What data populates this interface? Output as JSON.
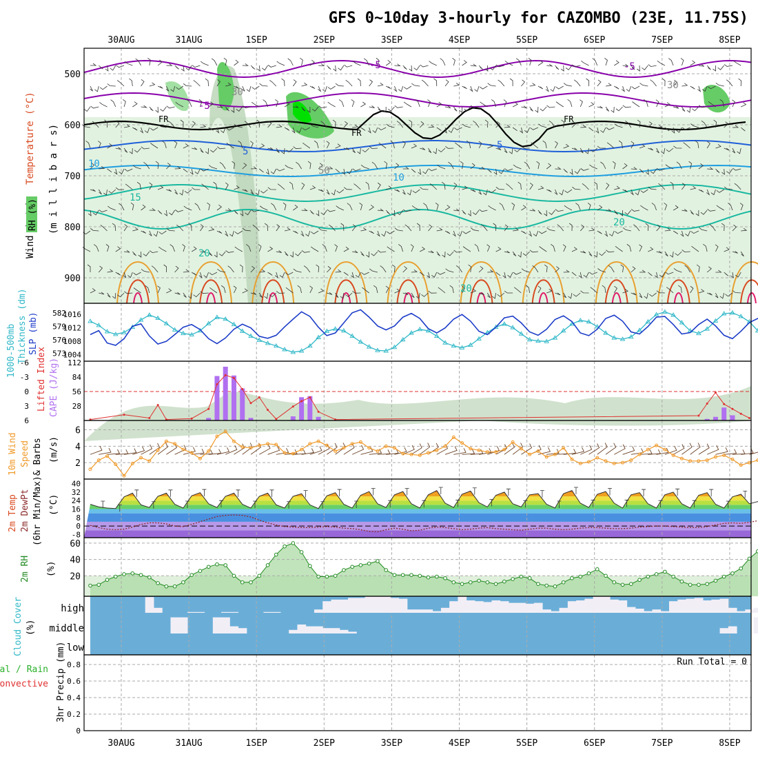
{
  "title": "GFS 0~10day 3-hourly for CAZOMBO (23E, 11.75S)",
  "colors": {
    "frame": "#000000",
    "grid": "#aaaaaa",
    "rh_light": "#e2f2e0",
    "rh_mid": "#bcd6b8",
    "rh_green": "#66cc66",
    "rh_bright": "#00e000",
    "temp_neg": "#8800aa",
    "temp_blue": "#1e5fd8",
    "temp_lblue": "#1e9ee0",
    "temp_teal": "#18b8a0",
    "temp_orange": "#e8a030",
    "temp_red": "#d84a20",
    "temp_mag": "#e01a6a",
    "slp": "#1c3cc8",
    "thickness": "#30b8c8",
    "lifted": "#e03030",
    "cape": "#b070f0",
    "wind10": "#f09a2a",
    "barb": "#6b4226",
    "rh2m": "#228b22",
    "cloud_bg": "#6aaed8",
    "cloud_clear": "#f2eef6",
    "precip_total": "#2ab02a",
    "precip_conv": "#e03030"
  },
  "date_labels": [
    "30AUG",
    "31AUG",
    "1SEP",
    "2SEP",
    "3SEP",
    "4SEP",
    "5SEP",
    "6SEP",
    "7SEP",
    "8SEP"
  ],
  "panels": {
    "upper": {
      "ylabel_wind": "Wind (m/s)",
      "ylabel_temp": "Temperature (°C)",
      "ylabel_rh": "RH (%)",
      "ylabel_p": "(m i l l i b a r s)",
      "p_ticks": [
        500,
        600,
        700,
        800,
        900
      ],
      "p_range": [
        450,
        950
      ],
      "fr_label": "FR",
      "contour_labels": [
        "-5",
        "-5",
        "-5",
        "5",
        "5",
        "10",
        "10",
        "15",
        "20",
        "20",
        "20",
        "30",
        "30",
        "50"
      ]
    },
    "thickness": {
      "ylabel1": "1000-500mb",
      "ylabel2": "Thickness (dm)",
      "ylabel3": "SLP (mb)",
      "left_ticks": [
        573,
        576,
        579,
        582
      ],
      "right_ticks": [
        1004,
        1008,
        1012,
        1016
      ]
    },
    "cape": {
      "ylabel1": "Lifted Index",
      "ylabel2": "CAPE (J/kg)",
      "left_ticks": [
        "-6",
        "-3",
        "0",
        "3",
        "6"
      ],
      "right_ticks": [
        28,
        56,
        84,
        112
      ]
    },
    "wind": {
      "ylabel1": "10m Wind",
      "ylabel2": "Speed",
      "ylabel3": "& Barbs",
      "ylabel4": "(m/s)",
      "ticks": [
        2,
        4,
        6
      ]
    },
    "temp2m": {
      "ylabel1": "2m Temp",
      "ylabel2": "2m DewPt",
      "ylabel3": "(6hr Min/Max)",
      "ylabel4": "(°C)",
      "ticks": [
        -8,
        0,
        8,
        16,
        24,
        32,
        40
      ]
    },
    "rh2m": {
      "ylabel1": "2m RH",
      "ylabel2": "(%)",
      "ticks": [
        20,
        40,
        60
      ]
    },
    "cloud": {
      "ylabel1": "Cloud Cover",
      "ylabel2": "(%)",
      "levels": [
        "high",
        "middle",
        "low"
      ]
    },
    "precip": {
      "ylabel1": "3hr Precip (mm)",
      "ylabel_total": "Total / Rain",
      "ylabel_conv": "Convective",
      "run_total": "Run Total = 0",
      "ticks": [
        0,
        0.2,
        0.4,
        0.6,
        0.8
      ]
    }
  },
  "chart_data": [
    {
      "type": "line",
      "name": "thickness_slp",
      "note_x": "3-hourly steps, 0..81",
      "thickness_dm": [
        580.1,
        579.2,
        577.8,
        577.2,
        577.6,
        578.8,
        580.4,
        581.5,
        580.8,
        579.6,
        578.2,
        577.4,
        577.1,
        578.0,
        579.6,
        581.0,
        580.6,
        579.4,
        577.9,
        576.8,
        575.9,
        575.2,
        574.6,
        573.8,
        573.2,
        573.5,
        574.6,
        576.5,
        577.9,
        578.4,
        578.0,
        576.8,
        575.5,
        574.4,
        573.6,
        573.5,
        574.3,
        576.0,
        577.5,
        578.3,
        578.0,
        576.8,
        575.3,
        574.6,
        574.2,
        574.8,
        576.2,
        577.6,
        578.8,
        579.5,
        578.7,
        577.3,
        576.0,
        575.7,
        575.6,
        576.4,
        578.0,
        579.5,
        580.3,
        580.0,
        578.9,
        577.5,
        576.4,
        576.1,
        576.6,
        578.1,
        580.0,
        581.6,
        582.2,
        581.5,
        579.8,
        578.0,
        577.4,
        578.4,
        580.2,
        581.8,
        582.0,
        581.2,
        580.0,
        578.0,
        576.7,
        577.8
      ],
      "slp_mb": [
        1010.0,
        1011.2,
        1007.5,
        1006.8,
        1008.8,
        1012.5,
        1013.2,
        1009.6,
        1007.2,
        1008.0,
        1010.0,
        1012.2,
        1013.0,
        1011.5,
        1008.8,
        1007.3,
        1009.0,
        1011.6,
        1013.1,
        1012.0,
        1009.5,
        1008.9,
        1009.8,
        1012.3,
        1014.6,
        1016.8,
        1015.4,
        1012.2,
        1009.7,
        1010.5,
        1013.5,
        1016.5,
        1017.4,
        1015.2,
        1012.6,
        1011.4,
        1012.6,
        1015.2,
        1016.3,
        1014.8,
        1011.8,
        1010.5,
        1012.0,
        1014.6,
        1016.0,
        1014.0,
        1011.0,
        1010.0,
        1012.2,
        1015.0,
        1015.5,
        1013.5,
        1010.8,
        1009.8,
        1011.6,
        1014.5,
        1015.6,
        1013.9,
        1010.5,
        1009.7,
        1011.6,
        1014.8,
        1015.8,
        1014.0,
        1010.8,
        1010.2,
        1012.4,
        1015.2,
        1015.4,
        1013.0,
        1010.2,
        1010.6,
        1013.0,
        1014.6,
        1012.6,
        1009.8,
        1008.8,
        1011.0,
        1013.6,
        1014.8,
        1013.4,
        1016.6
      ]
    },
    {
      "type": "bar",
      "name": "cape",
      "note_x": "3-hourly steps",
      "cape_jkg": [
        0,
        0,
        0,
        0,
        0,
        0,
        0,
        0,
        0,
        0,
        0,
        0,
        0,
        0,
        0,
        0,
        0,
        0,
        0,
        0,
        0,
        0,
        0,
        0,
        0,
        0,
        0,
        0,
        0,
        0,
        0,
        0,
        0,
        0,
        0,
        0,
        0,
        0,
        0,
        0,
        0,
        0,
        0,
        0,
        0,
        0,
        0,
        0,
        0,
        0,
        0,
        0,
        0,
        0,
        0,
        0,
        0,
        0,
        0,
        0,
        0,
        0,
        0,
        0,
        0,
        0,
        0,
        0,
        0,
        0,
        0,
        0,
        0,
        0,
        0,
        0,
        0,
        0,
        0,
        0,
        0,
        0
      ],
      "cape_nonzero": [
        [
          14,
          5
        ],
        [
          15,
          86
        ],
        [
          16,
          104
        ],
        [
          17,
          87
        ],
        [
          18,
          62
        ],
        [
          19,
          5
        ],
        [
          24,
          8
        ],
        [
          25,
          45
        ],
        [
          26,
          47
        ],
        [
          27,
          7
        ],
        [
          73,
          3
        ],
        [
          74,
          7
        ],
        [
          75,
          25
        ],
        [
          76,
          10
        ]
      ],
      "lifted_index": [
        [
          0,
          5.8
        ],
        [
          4,
          4.8
        ],
        [
          7,
          5.5
        ],
        [
          8,
          2.8
        ],
        [
          9,
          5.8
        ],
        [
          12,
          5.6
        ],
        [
          14,
          3.6
        ],
        [
          15,
          -1.5
        ],
        [
          16,
          -3.4
        ],
        [
          17,
          -2.8
        ],
        [
          18,
          -0.5
        ],
        [
          19,
          2.4
        ],
        [
          20,
          1.2
        ],
        [
          21,
          3.8
        ],
        [
          22,
          5.7
        ],
        [
          24,
          3.1
        ],
        [
          25,
          2.0
        ],
        [
          26,
          1.2
        ],
        [
          27,
          4.2
        ],
        [
          29,
          5.8
        ],
        [
          72,
          5.0
        ],
        [
          73,
          2.5
        ],
        [
          74,
          0.2
        ],
        [
          75,
          2.6
        ],
        [
          76,
          3.6
        ],
        [
          77,
          4.6
        ],
        [
          78,
          5.5
        ]
      ]
    },
    {
      "type": "line",
      "name": "wind10m",
      "speed_ms": [
        1.2,
        2.3,
        2.8,
        1.8,
        0.4,
        1.9,
        2.6,
        2.2,
        3.5,
        4.6,
        4.3,
        3.6,
        3.2,
        2.5,
        3.4,
        5.2,
        5.8,
        4.6,
        3.9,
        3.8,
        4.1,
        4.3,
        4.2,
        3.2,
        3.1,
        3.6,
        4.3,
        4.6,
        4.1,
        3.4,
        3.8,
        4.3,
        4.5,
        3.8,
        3.4,
        4.0,
        3.8,
        3.1,
        3.0,
        2.9,
        3.2,
        3.5,
        4.0,
        5.1,
        4.4,
        3.7,
        3.5,
        3.3,
        3.3,
        3.6,
        4.5,
        3.7,
        3.0,
        3.4,
        2.7,
        3.0,
        3.8,
        2.4,
        1.9,
        2.1,
        2.6,
        2.2,
        1.9,
        2.0,
        2.3,
        3.0,
        3.6,
        4.1,
        3.6,
        2.9,
        2.5,
        2.2,
        2.2,
        2.3,
        2.7,
        2.9,
        2.4,
        1.7,
        2.0,
        2.3,
        1.8,
        2.6
      ]
    },
    {
      "type": "line",
      "name": "temp2m",
      "temp_c": [
        20.5,
        18.0,
        17.0,
        16.5,
        27.5,
        31.0,
        20.0,
        17.5,
        28.0,
        31.0,
        20.5,
        17.0,
        28.5,
        31.5,
        21.0,
        17.5,
        28.0,
        31.0,
        20.5,
        17.0,
        28.0,
        31.0,
        20.0,
        17.0,
        28.0,
        30.5,
        20.0,
        16.5,
        28.5,
        31.5,
        20.5,
        17.0,
        29.0,
        32.5,
        21.0,
        17.5,
        29.5,
        32.5,
        21.0,
        17.0,
        29.5,
        33.5,
        21.5,
        17.5,
        30.0,
        33.0,
        22.0,
        18.0,
        29.0,
        32.0,
        21.0,
        18.0,
        29.5,
        30.5,
        20.5,
        17.0,
        30.5,
        33.5,
        21.5,
        17.5,
        30.0,
        32.5,
        21.5,
        17.0,
        29.5,
        31.5,
        21.0,
        17.0,
        29.5,
        32.0,
        21.0,
        17.0,
        29.0,
        31.5,
        20.5,
        17.0,
        27.5,
        30.0,
        21.0,
        23.0,
        19.5,
        22.0
      ],
      "dewpoint_c": [
        0.5,
        -1.5,
        -3.0,
        -3.5,
        -3.0,
        -1.0,
        1.5,
        3.0,
        3.0,
        2.0,
        0.0,
        -0.5,
        1.5,
        4.0,
        6.5,
        9.0,
        10.0,
        10.5,
        10.0,
        8.5,
        5.5,
        3.0,
        1.0,
        -0.5,
        -1.0,
        -1.5,
        -1.5,
        -1.0,
        -0.5,
        -1.0,
        -2.0,
        -2.5,
        -3.5,
        -5.0,
        -5.5,
        -3.5,
        -2.0,
        -3.0,
        -4.5,
        -4.0,
        -2.0,
        -1.0,
        -1.5,
        -2.5,
        -3.5,
        -3.0,
        -2.0,
        -1.5,
        -2.5,
        -3.0,
        -3.5,
        -4.0,
        -3.0,
        -2.0,
        -2.0,
        -3.0,
        -3.5,
        -3.0,
        -2.0,
        -1.5,
        -1.5,
        -2.0,
        -2.5,
        -2.5,
        -2.0,
        -1.0,
        -0.5,
        0.0,
        0.0,
        -0.5,
        -1.0,
        -1.5,
        -1.5,
        -0.5,
        1.0,
        2.5,
        3.0,
        2.5,
        3.5,
        5.0,
        6.0,
        8.0
      ]
    },
    {
      "type": "area",
      "name": "rh2m",
      "rh_pct": [
        8,
        9,
        15,
        19,
        22,
        23,
        21,
        18,
        11,
        7,
        7,
        12,
        21,
        26,
        31,
        34,
        33,
        20,
        12,
        12,
        20,
        33,
        46,
        56,
        60,
        49,
        32,
        19,
        19,
        20,
        27,
        31,
        33,
        35,
        38,
        27,
        21,
        21,
        21,
        20,
        18,
        19,
        17,
        12,
        10,
        12,
        14,
        12,
        10,
        13,
        16,
        19,
        17,
        10,
        8,
        7,
        12,
        17,
        19,
        23,
        28,
        20,
        12,
        9,
        10,
        15,
        19,
        22,
        25,
        19,
        13,
        9,
        9,
        10,
        14,
        19,
        23,
        29,
        41,
        50,
        57,
        31
      ]
    },
    {
      "type": "heatmap",
      "name": "cloud_cover_high_clear_steps",
      "high_clear_fraction": [
        0,
        0.15,
        0.2,
        0.05,
        0,
        0.15,
        0.8,
        0.7,
        0,
        0.6,
        0,
        0,
        0,
        0,
        0,
        0,
        0,
        0,
        0,
        0,
        0,
        0,
        0.5,
        0.3,
        0,
        0,
        0,
        0,
        0,
        0,
        0,
        0,
        0,
        0,
        0,
        0,
        0,
        0,
        0,
        0,
        0,
        0,
        0,
        0,
        0,
        0,
        0,
        0,
        0,
        0,
        0,
        0,
        0,
        0,
        0,
        0,
        0,
        0,
        0,
        0,
        0,
        0,
        0,
        0,
        0,
        0,
        0,
        0,
        0,
        0,
        0,
        0,
        0,
        0,
        0,
        0,
        0,
        0,
        0,
        0,
        0,
        0
      ],
      "high_present_steps": [
        [
          7,
          0.95
        ],
        [
          8,
          0.3
        ],
        [
          12,
          0.05
        ],
        [
          13,
          0.05
        ],
        [
          16,
          0.05
        ],
        [
          17,
          0.05
        ],
        [
          21,
          0.05
        ],
        [
          22,
          0.05
        ],
        [
          27,
          0.2
        ],
        [
          28,
          0.7
        ],
        [
          29,
          0.8
        ],
        [
          30,
          0.8
        ],
        [
          31,
          0.9
        ],
        [
          32,
          0.9
        ],
        [
          33,
          1.0
        ],
        [
          34,
          1.0
        ],
        [
          35,
          1.0
        ],
        [
          36,
          0.9
        ],
        [
          37,
          0.85
        ],
        [
          38,
          0.2
        ],
        [
          39,
          0.2
        ],
        [
          40,
          0.2
        ],
        [
          41,
          0.1
        ],
        [
          42,
          0.3
        ],
        [
          43,
          0.7
        ],
        [
          44,
          1.0
        ],
        [
          45,
          0.75
        ],
        [
          46,
          0.7
        ],
        [
          47,
          0.65
        ],
        [
          48,
          0.75
        ],
        [
          49,
          0.7
        ],
        [
          50,
          0.6
        ],
        [
          51,
          0.6
        ],
        [
          52,
          0.55
        ],
        [
          53,
          0.6
        ],
        [
          54,
          0.2
        ],
        [
          55,
          0.1
        ],
        [
          56,
          0.3
        ],
        [
          57,
          0.7
        ],
        [
          58,
          0.75
        ],
        [
          59,
          0.85
        ],
        [
          60,
          1.0
        ],
        [
          61,
          1.0
        ],
        [
          62,
          0.8
        ],
        [
          63,
          0.75
        ],
        [
          64,
          0.35
        ],
        [
          65,
          0.25
        ],
        [
          66,
          0.1
        ],
        [
          67,
          0.2
        ],
        [
          68,
          0.1
        ],
        [
          69,
          0.7
        ],
        [
          70,
          0.8
        ],
        [
          71,
          0.85
        ],
        [
          72,
          0.9
        ],
        [
          73,
          0.75
        ],
        [
          74,
          0.8
        ],
        [
          75,
          0.85
        ],
        [
          76,
          0.3
        ],
        [
          77,
          0.1
        ],
        [
          78,
          0.2
        ],
        [
          79,
          0.3
        ]
      ],
      "middle_present_steps": [
        [
          10,
          0.9
        ],
        [
          11,
          0.9
        ],
        [
          15,
          0.9
        ],
        [
          16,
          0.9
        ],
        [
          17,
          0.4
        ],
        [
          18,
          0.3
        ],
        [
          24,
          0.2
        ],
        [
          25,
          0.5
        ],
        [
          26,
          0.4
        ],
        [
          27,
          0.4
        ],
        [
          28,
          0.3
        ],
        [
          29,
          0.3
        ],
        [
          30,
          0.2
        ],
        [
          31,
          0.1
        ],
        [
          75,
          0.3
        ],
        [
          76,
          0.4
        ],
        [
          79,
          0.9
        ]
      ]
    },
    {
      "type": "line",
      "name": "precip3hr",
      "total_mm": [
        0,
        0,
        0,
        0,
        0,
        0,
        0,
        0,
        0,
        0
      ],
      "convective_mm": [
        0,
        0,
        0,
        0,
        0,
        0,
        0,
        0,
        0,
        0
      ],
      "ylim": [
        0,
        0.9
      ]
    }
  ]
}
